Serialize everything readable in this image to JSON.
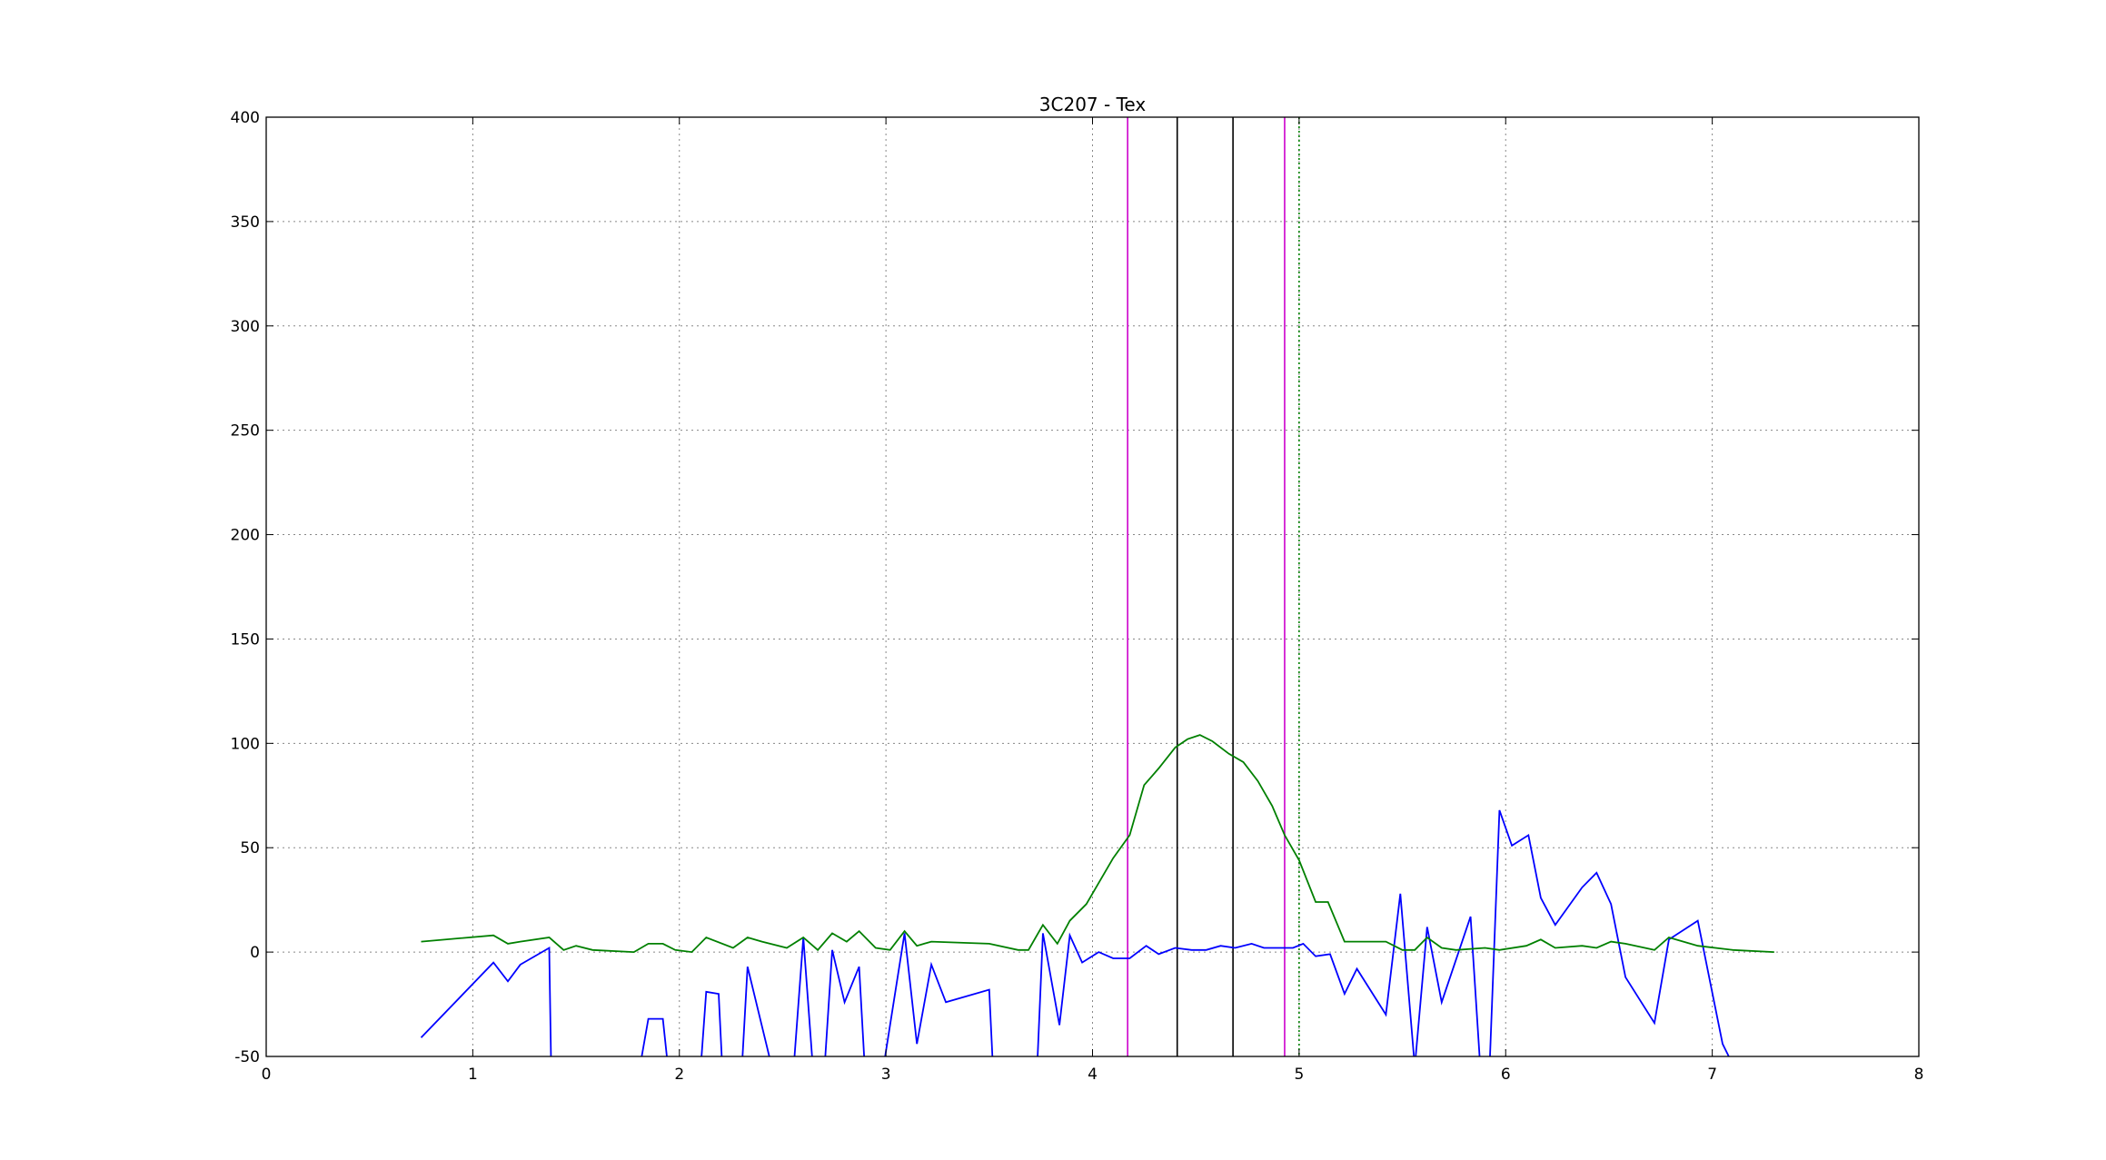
{
  "chart_data": {
    "type": "line",
    "title": "3C207 - Tex",
    "xlabel": "",
    "ylabel": "",
    "xlim": [
      0,
      8
    ],
    "ylim": [
      -50,
      400
    ],
    "xticks": [
      0,
      1,
      2,
      3,
      4,
      5,
      6,
      7,
      8
    ],
    "yticks": [
      -50,
      0,
      50,
      100,
      150,
      200,
      250,
      300,
      350,
      400
    ],
    "grid": true,
    "series": [
      {
        "color": "#0000ff",
        "points": [
          [
            0.75,
            -41
          ],
          [
            1.1,
            -5
          ],
          [
            1.17,
            -14
          ],
          [
            1.23,
            -6
          ],
          [
            1.37,
            2
          ],
          [
            1.38,
            -60
          ],
          [
            1.8,
            -60
          ],
          [
            1.85,
            -32
          ],
          [
            1.92,
            -32
          ],
          [
            1.95,
            -60
          ],
          [
            2.1,
            -60
          ],
          [
            2.13,
            -19
          ],
          [
            2.19,
            -20
          ],
          [
            2.21,
            -60
          ],
          [
            2.3,
            -60
          ],
          [
            2.33,
            -7
          ],
          [
            2.46,
            -60
          ],
          [
            2.55,
            -60
          ],
          [
            2.6,
            7
          ],
          [
            2.65,
            -60
          ],
          [
            2.7,
            -60
          ],
          [
            2.74,
            1
          ],
          [
            2.8,
            -24
          ],
          [
            2.87,
            -7
          ],
          [
            2.9,
            -60
          ],
          [
            2.98,
            -60
          ],
          [
            3.09,
            9
          ],
          [
            3.15,
            -44
          ],
          [
            3.22,
            -6
          ],
          [
            3.29,
            -24
          ],
          [
            3.5,
            -18
          ],
          [
            3.52,
            -60
          ],
          [
            3.73,
            -60
          ],
          [
            3.76,
            9
          ],
          [
            3.84,
            -35
          ],
          [
            3.89,
            8
          ],
          [
            3.95,
            -5
          ],
          [
            4.03,
            0
          ],
          [
            4.1,
            -3
          ],
          [
            4.18,
            -3
          ],
          [
            4.26,
            3
          ],
          [
            4.32,
            -1
          ],
          [
            4.4,
            2
          ],
          [
            4.48,
            1
          ],
          [
            4.55,
            1
          ],
          [
            4.62,
            3
          ],
          [
            4.69,
            2
          ],
          [
            4.77,
            4
          ],
          [
            4.83,
            2
          ],
          [
            4.97,
            2
          ],
          [
            5.02,
            4
          ],
          [
            5.08,
            -2
          ],
          [
            5.15,
            -1
          ],
          [
            5.22,
            -20
          ],
          [
            5.28,
            -8
          ],
          [
            5.42,
            -30
          ],
          [
            5.49,
            28
          ],
          [
            5.56,
            -55
          ],
          [
            5.62,
            12
          ],
          [
            5.69,
            -24
          ],
          [
            5.83,
            17
          ],
          [
            5.88,
            -60
          ],
          [
            5.92,
            -60
          ],
          [
            5.97,
            68
          ],
          [
            6.03,
            51
          ],
          [
            6.11,
            56
          ],
          [
            6.17,
            26
          ],
          [
            6.24,
            13
          ],
          [
            6.37,
            31
          ],
          [
            6.44,
            38
          ],
          [
            6.51,
            23
          ],
          [
            6.58,
            -12
          ],
          [
            6.72,
            -34
          ],
          [
            6.79,
            6
          ],
          [
            6.93,
            15
          ],
          [
            7.05,
            -44
          ],
          [
            7.09,
            -52
          ]
        ]
      },
      {
        "color": "#008000",
        "points": [
          [
            0.75,
            5
          ],
          [
            1.1,
            8
          ],
          [
            1.17,
            4
          ],
          [
            1.23,
            5
          ],
          [
            1.37,
            7
          ],
          [
            1.44,
            1
          ],
          [
            1.5,
            3
          ],
          [
            1.58,
            1
          ],
          [
            1.78,
            0
          ],
          [
            1.85,
            4
          ],
          [
            1.92,
            4
          ],
          [
            1.98,
            1
          ],
          [
            2.06,
            0
          ],
          [
            2.13,
            7
          ],
          [
            2.26,
            2
          ],
          [
            2.33,
            7
          ],
          [
            2.4,
            5
          ],
          [
            2.52,
            2
          ],
          [
            2.6,
            7
          ],
          [
            2.67,
            1
          ],
          [
            2.74,
            9
          ],
          [
            2.81,
            5
          ],
          [
            2.87,
            10
          ],
          [
            2.95,
            2
          ],
          [
            3.02,
            1
          ],
          [
            3.09,
            10
          ],
          [
            3.15,
            3
          ],
          [
            3.22,
            5
          ],
          [
            3.5,
            4
          ],
          [
            3.64,
            1
          ],
          [
            3.69,
            1
          ],
          [
            3.76,
            13
          ],
          [
            3.83,
            4
          ],
          [
            3.89,
            15
          ],
          [
            3.97,
            23
          ],
          [
            4.1,
            45
          ],
          [
            4.18,
            56
          ],
          [
            4.25,
            80
          ],
          [
            4.32,
            88
          ],
          [
            4.4,
            98
          ],
          [
            4.46,
            102
          ],
          [
            4.52,
            104
          ],
          [
            4.58,
            101
          ],
          [
            4.66,
            95
          ],
          [
            4.73,
            91
          ],
          [
            4.8,
            82
          ],
          [
            4.87,
            70
          ],
          [
            4.93,
            56
          ],
          [
            5.0,
            44
          ],
          [
            5.08,
            24
          ],
          [
            5.14,
            24
          ],
          [
            5.22,
            5
          ],
          [
            5.42,
            5
          ],
          [
            5.5,
            1
          ],
          [
            5.56,
            1
          ],
          [
            5.62,
            7
          ],
          [
            5.69,
            2
          ],
          [
            5.76,
            1
          ],
          [
            5.9,
            2
          ],
          [
            5.97,
            1
          ],
          [
            6.1,
            3
          ],
          [
            6.17,
            6
          ],
          [
            6.24,
            2
          ],
          [
            6.37,
            3
          ],
          [
            6.44,
            2
          ],
          [
            6.51,
            5
          ],
          [
            6.58,
            4
          ],
          [
            6.72,
            1
          ],
          [
            6.79,
            7
          ],
          [
            6.93,
            3
          ],
          [
            7.1,
            1
          ],
          [
            7.3,
            0
          ]
        ]
      }
    ],
    "vlines": [
      {
        "x": 4.17,
        "color": "#cc00cc",
        "style": "solid"
      },
      {
        "x": 4.41,
        "color": "#000000",
        "style": "solid"
      },
      {
        "x": 4.68,
        "color": "#000000",
        "style": "solid"
      },
      {
        "x": 4.93,
        "color": "#cc00cc",
        "style": "solid"
      },
      {
        "x": 5.0,
        "color": "#008000",
        "style": "dotted"
      }
    ]
  }
}
